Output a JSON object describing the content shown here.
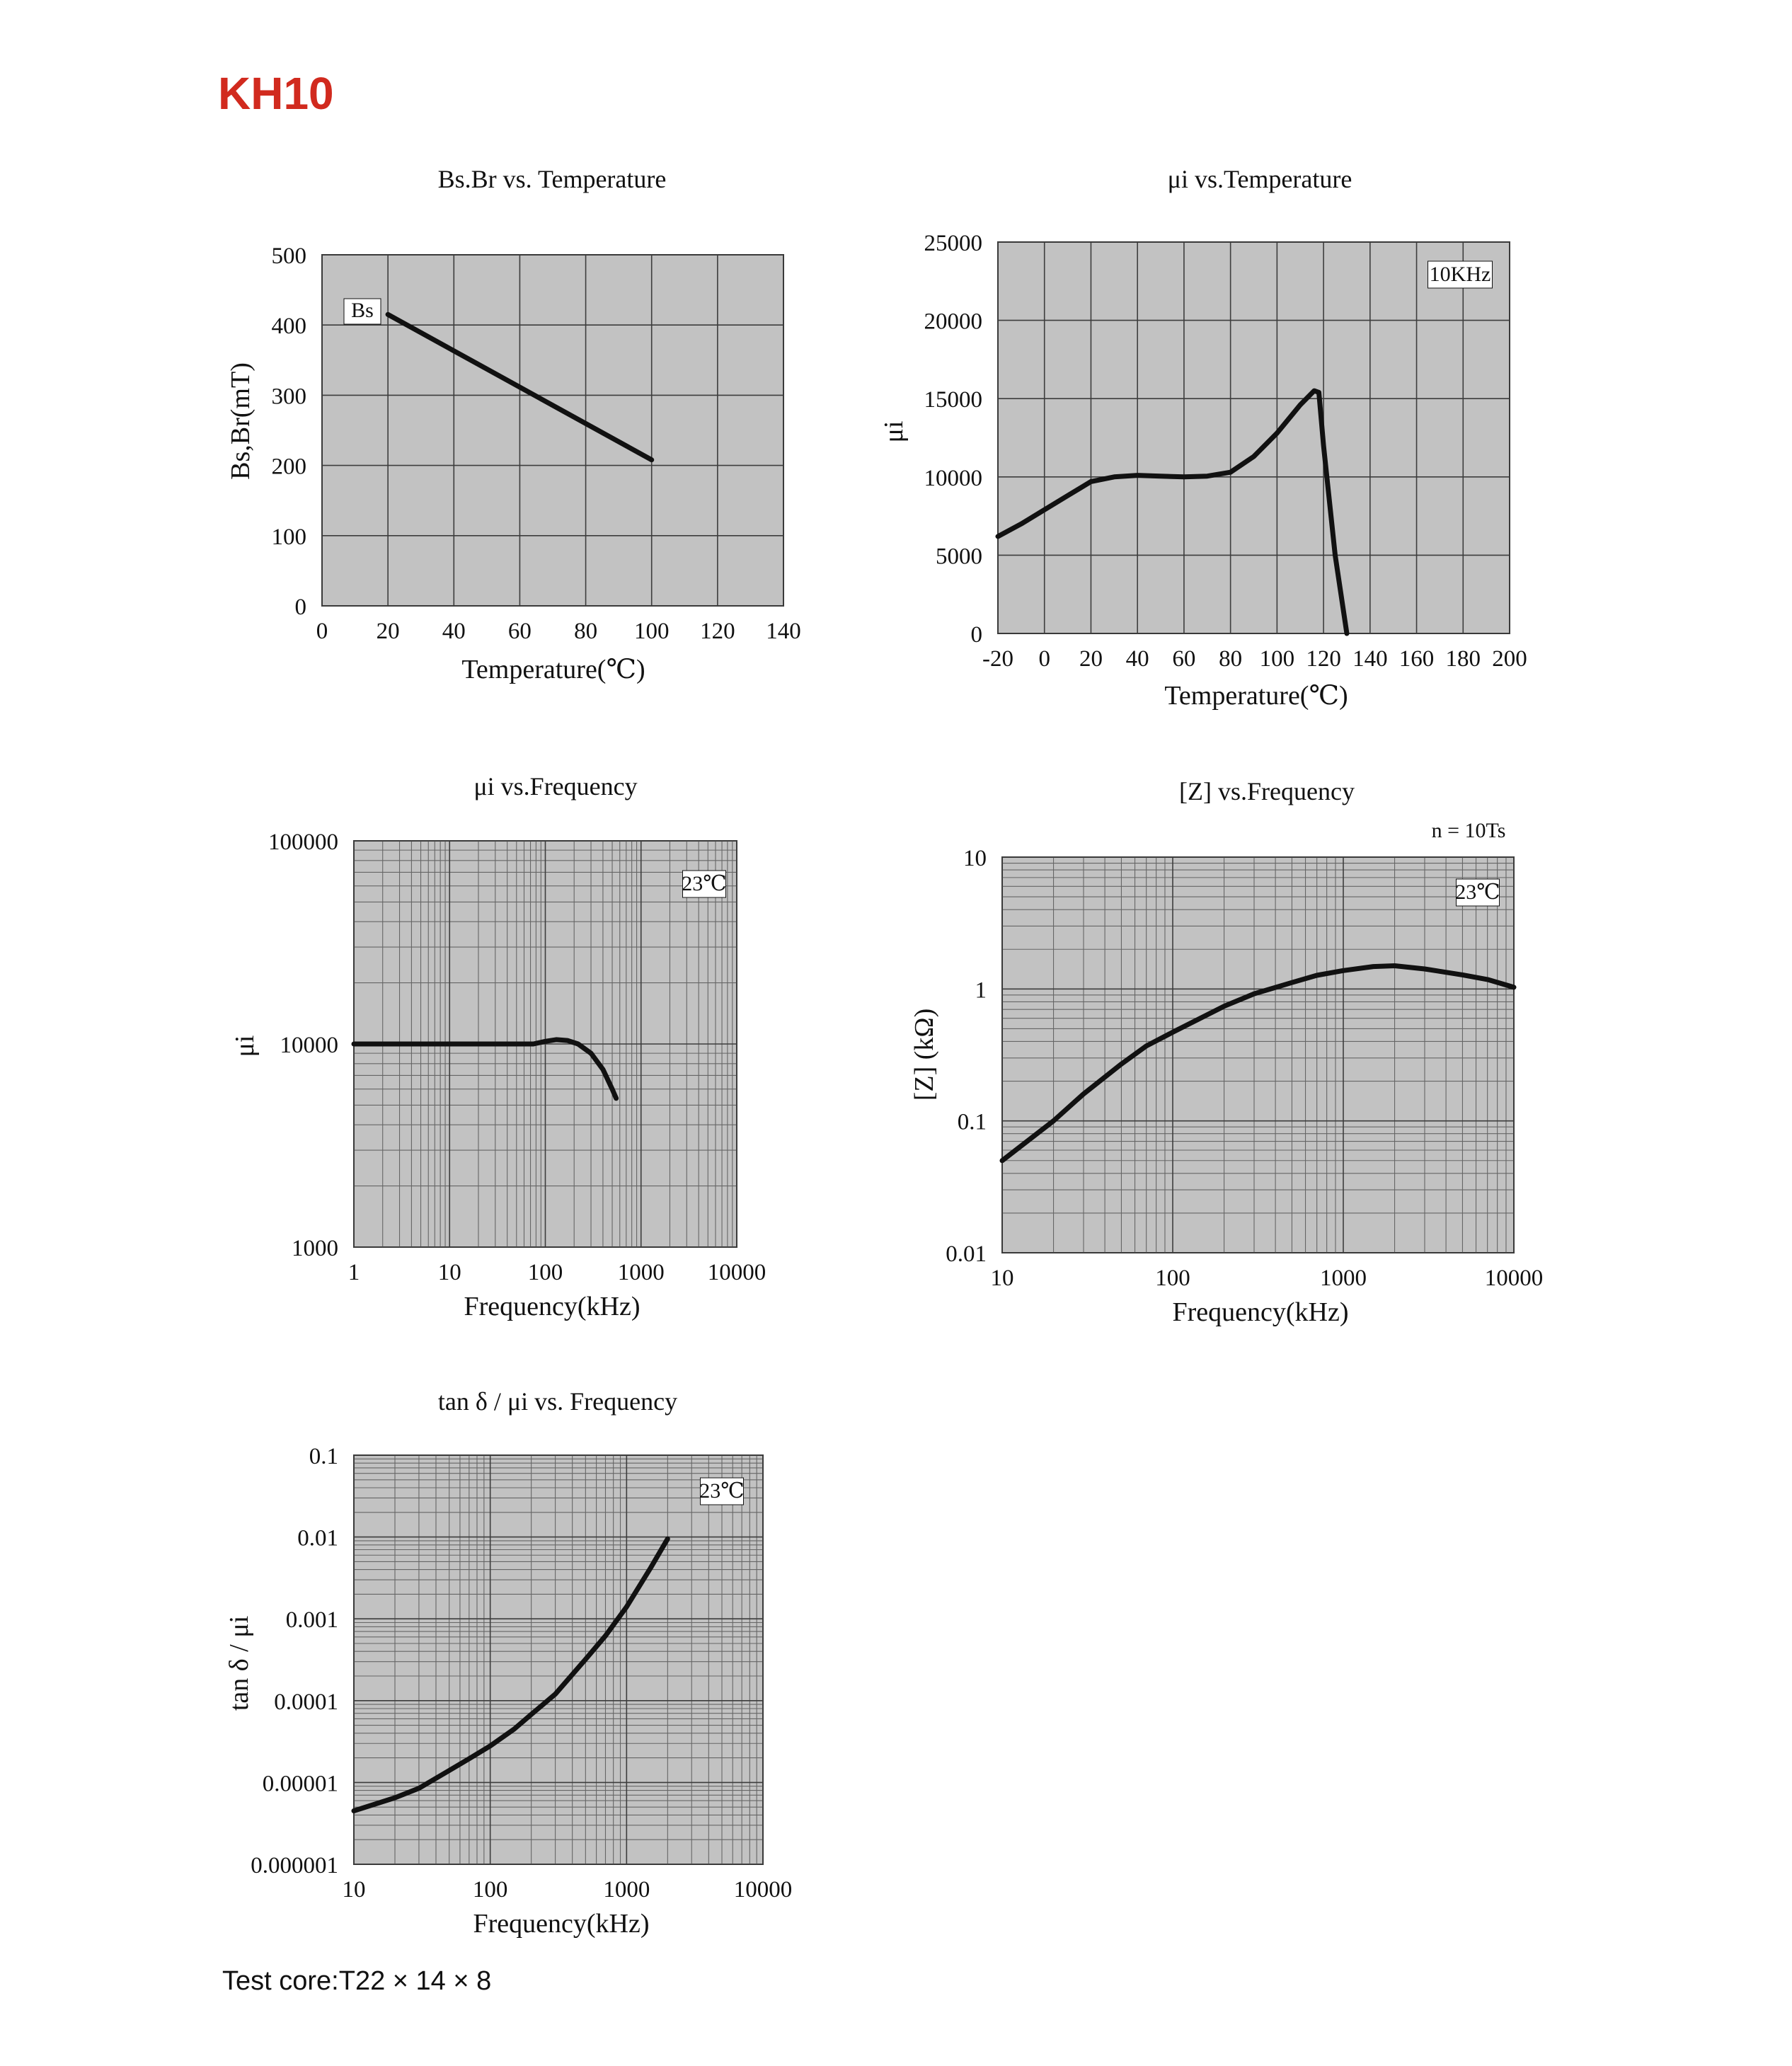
{
  "page": {
    "title": "KH10",
    "footer": "Test core:T22 × 14 × 8"
  },
  "chart_data": [
    {
      "id": "bs-temp",
      "type": "line",
      "title": "Bs.Br  vs. Temperature",
      "xlabel": "Temperature(℃)",
      "ylabel": "Bs,Br(mT)",
      "xscale": "linear",
      "yscale": "linear",
      "xlim": [
        0,
        140
      ],
      "ylim": [
        0,
        500
      ],
      "xticks": [
        "0",
        "20",
        "40",
        "60",
        "80",
        "100",
        "120",
        "140"
      ],
      "yticks": [
        "0",
        "100",
        "200",
        "300",
        "400",
        "500"
      ],
      "grid": true,
      "annotations": [],
      "series": [
        {
          "name": "Bs",
          "label": "Bs",
          "x": [
            20,
            100
          ],
          "y": [
            415,
            208
          ]
        }
      ]
    },
    {
      "id": "mu-temp",
      "type": "line",
      "title": "μi  vs.Temperature",
      "xlabel": "Temperature(℃)",
      "ylabel": "μi",
      "xscale": "linear",
      "yscale": "linear",
      "xlim": [
        -20,
        200
      ],
      "ylim": [
        0,
        25000
      ],
      "xticks": [
        "-20",
        "0",
        "20",
        "40",
        "60",
        "80",
        "100",
        "120",
        "140",
        "160",
        "180",
        "200"
      ],
      "yticks": [
        "0",
        "5000",
        "10000",
        "15000",
        "20000",
        "25000"
      ],
      "grid": true,
      "annotations": [
        "10KHz"
      ],
      "series": [
        {
          "x": [
            -20,
            -10,
            0,
            10,
            20,
            30,
            40,
            50,
            60,
            70,
            80,
            90,
            100,
            110,
            116,
            118,
            120,
            125,
            130
          ],
          "y": [
            6200,
            7000,
            7900,
            8800,
            9700,
            10000,
            10100,
            10050,
            10000,
            10050,
            10300,
            11300,
            12800,
            14600,
            15500,
            15400,
            12000,
            5000,
            0
          ]
        }
      ]
    },
    {
      "id": "mu-freq",
      "type": "line",
      "title": "μi vs.Frequency",
      "xlabel": "Frequency(kHz)",
      "ylabel": "μi",
      "xscale": "log",
      "yscale": "log",
      "xlim": [
        1,
        10000
      ],
      "ylim": [
        1000,
        100000
      ],
      "xticks": [
        "1",
        "10",
        "100",
        "1000",
        "10000"
      ],
      "yticks": [
        "1000",
        "10000",
        "100000"
      ],
      "grid": true,
      "annotations": [
        "23℃"
      ],
      "series": [
        {
          "x": [
            1,
            10,
            50,
            75,
            100,
            130,
            170,
            220,
            300,
            400,
            500,
            550
          ],
          "y": [
            10000,
            10000,
            10000,
            10000,
            10300,
            10500,
            10400,
            10000,
            9000,
            7500,
            6000,
            5400
          ]
        }
      ]
    },
    {
      "id": "z-freq",
      "type": "line",
      "title": "[Z]    vs.Frequency",
      "xlabel": "Frequency(kHz)",
      "ylabel": "[Z]  (kΩ)",
      "xscale": "log",
      "yscale": "log",
      "xlim": [
        10,
        10000
      ],
      "ylim": [
        0.01,
        10
      ],
      "xticks": [
        "10",
        "100",
        "1000",
        "10000"
      ],
      "yticks": [
        "0.01",
        "0.1",
        "1",
        "10"
      ],
      "grid": true,
      "annotations": [
        "n = 10Ts",
        "23℃"
      ],
      "series": [
        {
          "x": [
            10,
            20,
            30,
            50,
            70,
            100,
            200,
            300,
            500,
            700,
            1000,
            1500,
            2000,
            3000,
            5000,
            7000,
            10000
          ],
          "y": [
            0.05,
            0.1,
            0.16,
            0.27,
            0.37,
            0.47,
            0.74,
            0.92,
            1.12,
            1.27,
            1.38,
            1.48,
            1.5,
            1.42,
            1.28,
            1.18,
            1.03
          ]
        }
      ]
    },
    {
      "id": "tand-freq",
      "type": "line",
      "title": "tan δ / μi vs. Frequency",
      "xlabel": "Frequency(kHz)",
      "ylabel": "tan δ / μi",
      "xscale": "log",
      "yscale": "log",
      "xlim": [
        10,
        10000
      ],
      "ylim": [
        1e-06,
        0.1
      ],
      "xticks": [
        "10",
        "100",
        "1000",
        "10000"
      ],
      "yticks": [
        "0.000001",
        "0.00001",
        "0.0001",
        "0.001",
        "0.01",
        "0.1"
      ],
      "grid": true,
      "annotations": [
        "23℃"
      ],
      "series": [
        {
          "x": [
            10,
            20,
            30,
            50,
            70,
            100,
            150,
            200,
            300,
            500,
            700,
            1000,
            1500,
            2000
          ],
          "y": [
            4.5e-06,
            6.5e-06,
            8.5e-06,
            1.4e-05,
            1.95e-05,
            2.8e-05,
            4.5e-05,
            6.8e-05,
            0.00012,
            0.00032,
            0.00062,
            0.0014,
            0.0042,
            0.0095
          ]
        }
      ]
    }
  ]
}
